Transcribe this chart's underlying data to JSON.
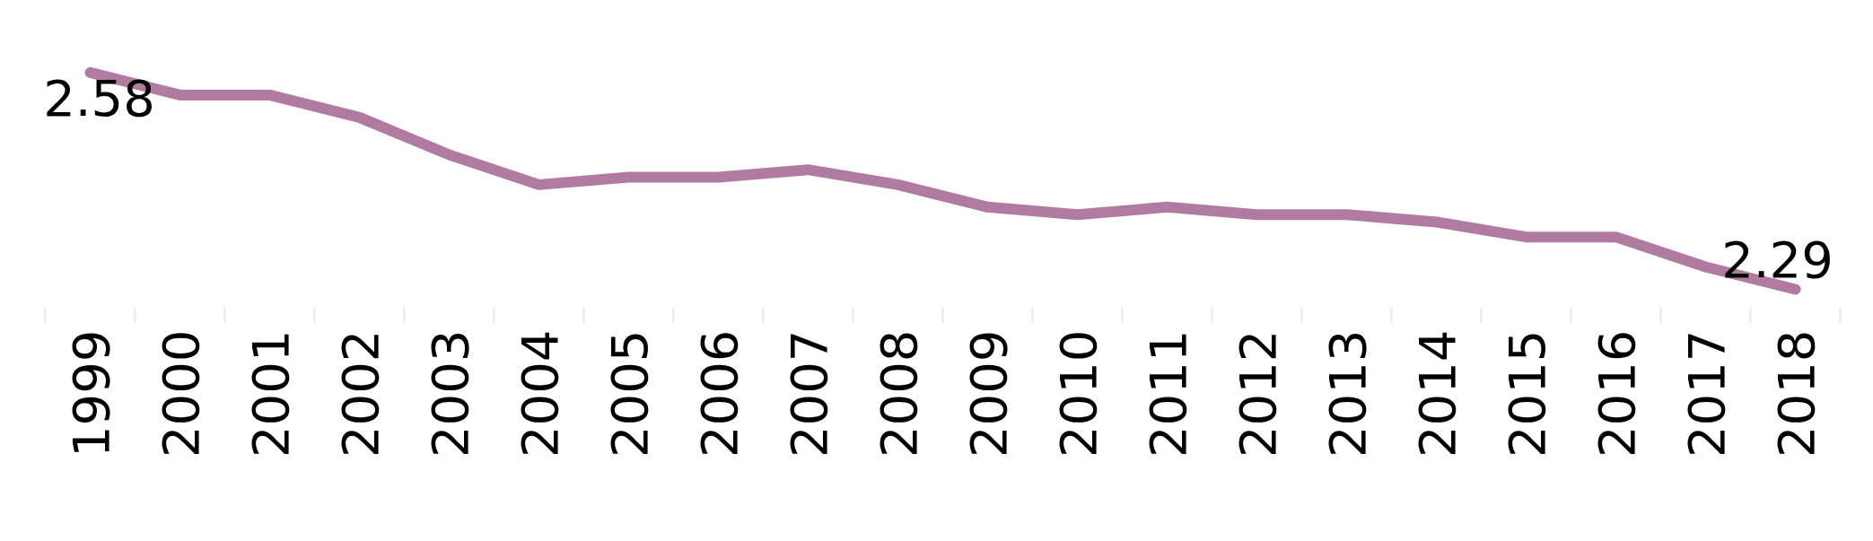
{
  "chart_data": {
    "type": "line",
    "categories": [
      "1999",
      "2000",
      "2001",
      "2002",
      "2003",
      "2004",
      "2005",
      "2006",
      "2007",
      "2008",
      "2009",
      "2010",
      "2011",
      "2012",
      "2013",
      "2014",
      "2015",
      "2016",
      "2017",
      "2018"
    ],
    "values": [
      2.58,
      2.55,
      2.55,
      2.52,
      2.47,
      2.43,
      2.44,
      2.44,
      2.45,
      2.43,
      2.4,
      2.39,
      2.4,
      2.39,
      2.39,
      2.38,
      2.36,
      2.36,
      2.32,
      2.29
    ],
    "value_labels": [
      "2.58",
      null,
      null,
      null,
      null,
      null,
      null,
      null,
      null,
      null,
      null,
      null,
      null,
      null,
      null,
      null,
      null,
      null,
      null,
      "2.29"
    ],
    "color": "#b07aa1",
    "line_style": "solid"
  }
}
